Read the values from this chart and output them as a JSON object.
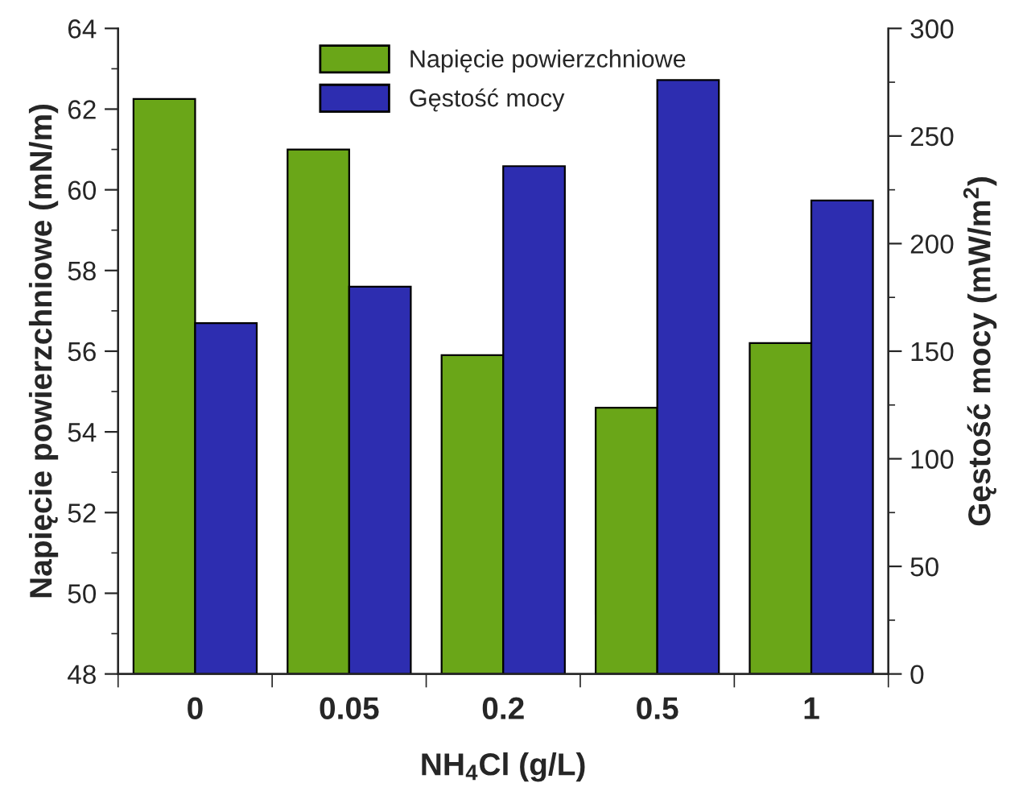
{
  "chart_data": {
    "type": "bar",
    "categories": [
      "0",
      "0.05",
      "0.2",
      "0.5",
      "1"
    ],
    "xlabel": "NH$_{4}$Cl (g/L)",
    "ylabel": "Napięcie powierzchniowe (mN/m)",
    "y2label": "Gęstość mocy (mW/m$^{2}$)",
    "series": [
      {
        "name": "Napięcie powierzchniowe",
        "color": "#6aa618",
        "values": [
          62.25,
          61.0,
          55.9,
          54.6,
          56.2
        ]
      },
      {
        "name": "Gęstość mocy",
        "color": "#2d2db0",
        "axis": "y2",
        "values": [
          163,
          180,
          236,
          276,
          220
        ]
      }
    ],
    "ylim": [
      48,
      64
    ],
    "yticks": [
      48,
      50,
      52,
      54,
      56,
      58,
      60,
      62,
      64
    ],
    "y2lim": [
      0,
      300
    ],
    "y2ticks": [
      0,
      50,
      100,
      150,
      200,
      250,
      300
    ],
    "legend": "top",
    "grid": false
  }
}
